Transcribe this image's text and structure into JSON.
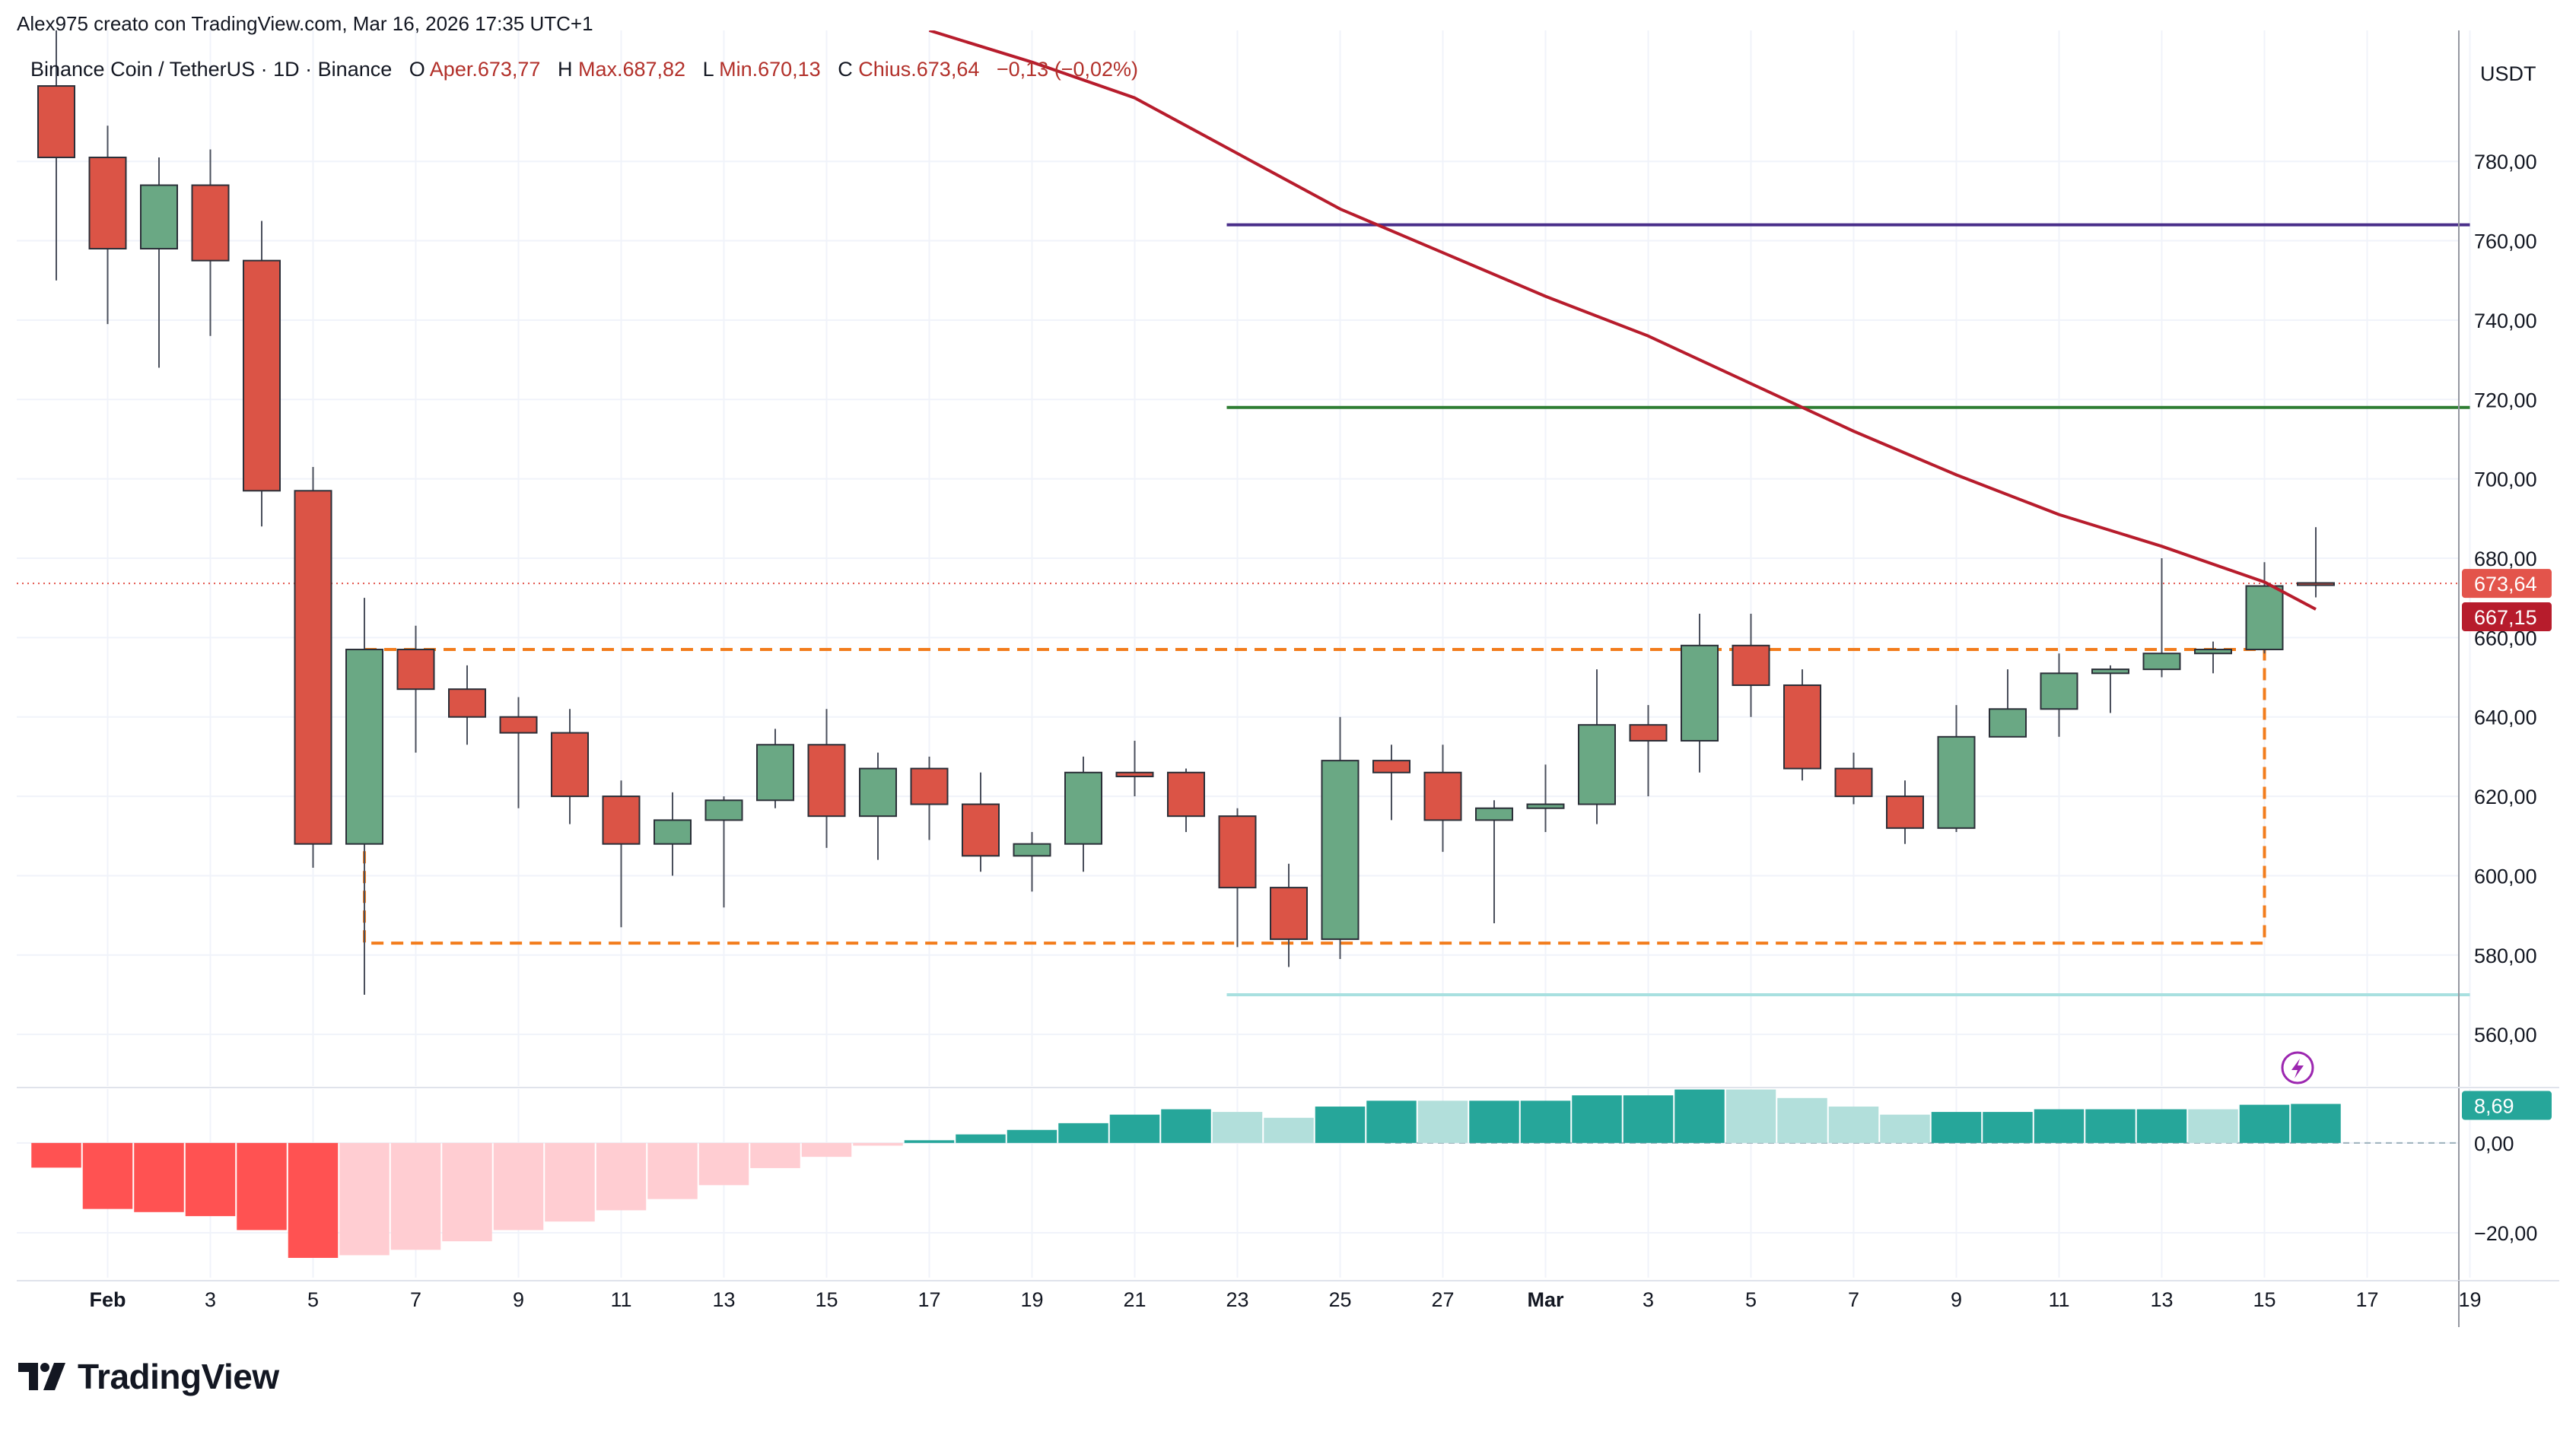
{
  "header": {
    "credit": "Alex975 creato con TradingView.com, Mar 16, 2026 17:35 UTC+1"
  },
  "legend": {
    "symbol": "Binance Coin / TetherUS · 1D · Binance",
    "open_label": "O",
    "open_value": "Aper.673,77",
    "high_label": "H",
    "high_value": "Max.687,82",
    "low_label": "L",
    "low_value": "Min.670,13",
    "close_label": "C",
    "close_value": "Chius.673,64",
    "change": "−0,13 (−0,02%)"
  },
  "brand": {
    "name": "TradingView"
  },
  "colors": {
    "up": "#6aa884",
    "down": "#db5446",
    "ma": "#b71c2c",
    "resistance_purple": "#4a2f8a",
    "resistance_green": "#2e7d32",
    "support_cyan": "#a8e0e0",
    "range_box": "#f27c1c",
    "hist_pos_strong": "#26a69a",
    "hist_pos_weak": "#b2dfdb",
    "hist_neg_strong": "#ff5252",
    "hist_neg_weak": "#ffcdd2"
  },
  "chart_data": [
    {
      "type": "candlestick",
      "title": "Binance Coin / TetherUS · 1D · Binance",
      "currency": "USDT",
      "y_axis": {
        "unit": "USDT",
        "ylim": [
          547,
          813
        ],
        "ticks": [
          "560,00",
          "580,00",
          "600,00",
          "620,00",
          "640,00",
          "660,00",
          "680,00",
          "700,00",
          "720,00",
          "740,00",
          "760,00",
          "780,00"
        ],
        "tick_values": [
          560,
          580,
          600,
          620,
          640,
          660,
          680,
          700,
          720,
          740,
          760,
          780
        ]
      },
      "x_axis": {
        "ticks": [
          {
            "date": "2026-02-01",
            "label": "Feb"
          },
          {
            "date": "2026-02-03",
            "label": "3"
          },
          {
            "date": "2026-02-05",
            "label": "5"
          },
          {
            "date": "2026-02-07",
            "label": "7"
          },
          {
            "date": "2026-02-09",
            "label": "9"
          },
          {
            "date": "2026-02-11",
            "label": "11"
          },
          {
            "date": "2026-02-13",
            "label": "13"
          },
          {
            "date": "2026-02-15",
            "label": "15"
          },
          {
            "date": "2026-02-17",
            "label": "17"
          },
          {
            "date": "2026-02-19",
            "label": "19"
          },
          {
            "date": "2026-02-21",
            "label": "21"
          },
          {
            "date": "2026-02-23",
            "label": "23"
          },
          {
            "date": "2026-02-25",
            "label": "25"
          },
          {
            "date": "2026-02-27",
            "label": "27"
          },
          {
            "date": "2026-03-01",
            "label": "Mar"
          },
          {
            "date": "2026-03-03",
            "label": "3"
          },
          {
            "date": "2026-03-05",
            "label": "5"
          },
          {
            "date": "2026-03-07",
            "label": "7"
          },
          {
            "date": "2026-03-09",
            "label": "9"
          },
          {
            "date": "2026-03-11",
            "label": "11"
          },
          {
            "date": "2026-03-13",
            "label": "13"
          },
          {
            "date": "2026-03-15",
            "label": "15"
          },
          {
            "date": "2026-03-17",
            "label": "17"
          },
          {
            "date": "2026-03-19",
            "label": "19"
          }
        ]
      },
      "candles": [
        {
          "date": "2026-01-31",
          "open": 799,
          "high": 813,
          "low": 750,
          "close": 781
        },
        {
          "date": "2026-02-01",
          "open": 781,
          "high": 789,
          "low": 739,
          "close": 758
        },
        {
          "date": "2026-02-02",
          "open": 758,
          "high": 781,
          "low": 728,
          "close": 774
        },
        {
          "date": "2026-02-03",
          "open": 774,
          "high": 783,
          "low": 736,
          "close": 755
        },
        {
          "date": "2026-02-04",
          "open": 755,
          "high": 765,
          "low": 688,
          "close": 697
        },
        {
          "date": "2026-02-05",
          "open": 697,
          "high": 703,
          "low": 602,
          "close": 608
        },
        {
          "date": "2026-02-06",
          "open": 608,
          "high": 670,
          "low": 570,
          "close": 657
        },
        {
          "date": "2026-02-07",
          "open": 657,
          "high": 663,
          "low": 631,
          "close": 647
        },
        {
          "date": "2026-02-08",
          "open": 647,
          "high": 653,
          "low": 633,
          "close": 640
        },
        {
          "date": "2026-02-09",
          "open": 640,
          "high": 645,
          "low": 617,
          "close": 636
        },
        {
          "date": "2026-02-10",
          "open": 636,
          "high": 642,
          "low": 613,
          "close": 620
        },
        {
          "date": "2026-02-11",
          "open": 620,
          "high": 624,
          "low": 587,
          "close": 608
        },
        {
          "date": "2026-02-12",
          "open": 608,
          "high": 621,
          "low": 600,
          "close": 614
        },
        {
          "date": "2026-02-13",
          "open": 614,
          "high": 620,
          "low": 592,
          "close": 619
        },
        {
          "date": "2026-02-14",
          "open": 619,
          "high": 637,
          "low": 617,
          "close": 633
        },
        {
          "date": "2026-02-15",
          "open": 633,
          "high": 642,
          "low": 607,
          "close": 615
        },
        {
          "date": "2026-02-16",
          "open": 615,
          "high": 631,
          "low": 604,
          "close": 627
        },
        {
          "date": "2026-02-17",
          "open": 627,
          "high": 630,
          "low": 609,
          "close": 618
        },
        {
          "date": "2026-02-18",
          "open": 618,
          "high": 626,
          "low": 601,
          "close": 605
        },
        {
          "date": "2026-02-19",
          "open": 605,
          "high": 611,
          "low": 596,
          "close": 608
        },
        {
          "date": "2026-02-20",
          "open": 608,
          "high": 630,
          "low": 601,
          "close": 626
        },
        {
          "date": "2026-02-21",
          "open": 626,
          "high": 634,
          "low": 620,
          "close": 625
        },
        {
          "date": "2026-02-22",
          "open": 626,
          "high": 627,
          "low": 611,
          "close": 615
        },
        {
          "date": "2026-02-23",
          "open": 615,
          "high": 617,
          "low": 582,
          "close": 597
        },
        {
          "date": "2026-02-24",
          "open": 597,
          "high": 603,
          "low": 577,
          "close": 584
        },
        {
          "date": "2026-02-25",
          "open": 584,
          "high": 640,
          "low": 579,
          "close": 629
        },
        {
          "date": "2026-02-26",
          "open": 629,
          "high": 633,
          "low": 614,
          "close": 626
        },
        {
          "date": "2026-02-27",
          "open": 626,
          "high": 633,
          "low": 606,
          "close": 614
        },
        {
          "date": "2026-02-28",
          "open": 614,
          "high": 619,
          "low": 588,
          "close": 617
        },
        {
          "date": "2026-03-01",
          "open": 617,
          "high": 628,
          "low": 611,
          "close": 618
        },
        {
          "date": "2026-03-02",
          "open": 618,
          "high": 652,
          "low": 613,
          "close": 638
        },
        {
          "date": "2026-03-03",
          "open": 638,
          "high": 643,
          "low": 620,
          "close": 634
        },
        {
          "date": "2026-03-04",
          "open": 634,
          "high": 666,
          "low": 626,
          "close": 658
        },
        {
          "date": "2026-03-05",
          "open": 658,
          "high": 666,
          "low": 640,
          "close": 648
        },
        {
          "date": "2026-03-06",
          "open": 648,
          "high": 652,
          "low": 624,
          "close": 627
        },
        {
          "date": "2026-03-07",
          "open": 627,
          "high": 631,
          "low": 618,
          "close": 620
        },
        {
          "date": "2026-03-08",
          "open": 620,
          "high": 624,
          "low": 608,
          "close": 612
        },
        {
          "date": "2026-03-09",
          "open": 612,
          "high": 643,
          "low": 611,
          "close": 635
        },
        {
          "date": "2026-03-10",
          "open": 635,
          "high": 652,
          "low": 635,
          "close": 642
        },
        {
          "date": "2026-03-11",
          "open": 642,
          "high": 656,
          "low": 635,
          "close": 651
        },
        {
          "date": "2026-03-12",
          "open": 651,
          "high": 653,
          "low": 641,
          "close": 652
        },
        {
          "date": "2026-03-13",
          "open": 652,
          "high": 680,
          "low": 650,
          "close": 656
        },
        {
          "date": "2026-03-14",
          "open": 656,
          "high": 659,
          "low": 651,
          "close": 657
        },
        {
          "date": "2026-03-15",
          "open": 657,
          "high": 679,
          "low": 656,
          "close": 673
        },
        {
          "date": "2026-03-16",
          "open": 673.77,
          "high": 687.82,
          "low": 670.13,
          "close": 673.64
        }
      ],
      "moving_average": [
        {
          "date": "2026-02-17",
          "value": 813
        },
        {
          "date": "2026-02-19",
          "value": 805
        },
        {
          "date": "2026-02-21",
          "value": 796
        },
        {
          "date": "2026-02-23",
          "value": 782
        },
        {
          "date": "2026-02-25",
          "value": 768
        },
        {
          "date": "2026-02-27",
          "value": 757
        },
        {
          "date": "2026-03-01",
          "value": 746
        },
        {
          "date": "2026-03-03",
          "value": 736
        },
        {
          "date": "2026-03-05",
          "value": 724
        },
        {
          "date": "2026-03-07",
          "value": 712
        },
        {
          "date": "2026-03-09",
          "value": 701
        },
        {
          "date": "2026-03-11",
          "value": 691
        },
        {
          "date": "2026-03-13",
          "value": 683
        },
        {
          "date": "2026-03-15",
          "value": 674
        },
        {
          "date": "2026-03-16",
          "value": 667.15
        }
      ],
      "horizontal_levels": [
        {
          "value": 764,
          "from": "2026-02-23",
          "to": "2026-03-19",
          "style": "solid",
          "color_key": "resistance_purple"
        },
        {
          "value": 718,
          "from": "2026-02-23",
          "to": "2026-03-19",
          "style": "solid",
          "color_key": "resistance_green"
        },
        {
          "value": 570,
          "from": "2026-02-23",
          "to": "2026-03-19",
          "style": "solid",
          "color_key": "support_cyan"
        }
      ],
      "range_box": {
        "from": "2026-02-06",
        "to": "2026-03-15",
        "top": 657,
        "bottom": 583
      },
      "last_price": {
        "value": 673.64,
        "label": "673,64"
      },
      "ma_label": {
        "value": 667.15,
        "label": "667,15"
      }
    },
    {
      "type": "histogram",
      "y_axis": {
        "ylim": [
          -30,
          12
        ],
        "ticks": [
          "0,00",
          "−20,00"
        ],
        "tick_values": [
          0,
          -20
        ]
      },
      "last_value": {
        "value": 8.69,
        "label": "8,69"
      },
      "bars": [
        {
          "date": "2026-01-31",
          "value": -5.5,
          "shade": "strong"
        },
        {
          "date": "2026-02-01",
          "value": -14.7,
          "shade": "strong"
        },
        {
          "date": "2026-02-02",
          "value": -15.4,
          "shade": "strong"
        },
        {
          "date": "2026-02-03",
          "value": -16.3,
          "shade": "strong"
        },
        {
          "date": "2026-02-04",
          "value": -19.4,
          "shade": "strong"
        },
        {
          "date": "2026-02-05",
          "value": -25.6,
          "shade": "strong"
        },
        {
          "date": "2026-02-06",
          "value": -25.0,
          "shade": "weak"
        },
        {
          "date": "2026-02-07",
          "value": -23.8,
          "shade": "weak"
        },
        {
          "date": "2026-02-08",
          "value": -21.9,
          "shade": "weak"
        },
        {
          "date": "2026-02-09",
          "value": -19.4,
          "shade": "weak"
        },
        {
          "date": "2026-02-10",
          "value": -17.5,
          "shade": "weak"
        },
        {
          "date": "2026-02-11",
          "value": -15.0,
          "shade": "weak"
        },
        {
          "date": "2026-02-12",
          "value": -12.5,
          "shade": "weak"
        },
        {
          "date": "2026-02-13",
          "value": -9.4,
          "shade": "weak"
        },
        {
          "date": "2026-02-14",
          "value": -5.6,
          "shade": "weak"
        },
        {
          "date": "2026-02-15",
          "value": -3.1,
          "shade": "weak"
        },
        {
          "date": "2026-02-16",
          "value": -0.6,
          "shade": "weak"
        },
        {
          "date": "2026-02-17",
          "value": 0.6,
          "shade": "strong"
        },
        {
          "date": "2026-02-18",
          "value": 1.9,
          "shade": "strong"
        },
        {
          "date": "2026-02-19",
          "value": 2.9,
          "shade": "strong"
        },
        {
          "date": "2026-02-20",
          "value": 4.4,
          "shade": "strong"
        },
        {
          "date": "2026-02-21",
          "value": 6.3,
          "shade": "strong"
        },
        {
          "date": "2026-02-22",
          "value": 7.5,
          "shade": "strong"
        },
        {
          "date": "2026-02-23",
          "value": 6.9,
          "shade": "weak"
        },
        {
          "date": "2026-02-24",
          "value": 5.6,
          "shade": "weak"
        },
        {
          "date": "2026-02-25",
          "value": 8.1,
          "shade": "strong"
        },
        {
          "date": "2026-02-26",
          "value": 9.4,
          "shade": "strong"
        },
        {
          "date": "2026-02-27",
          "value": 9.4,
          "shade": "weak"
        },
        {
          "date": "2026-02-28",
          "value": 9.4,
          "shade": "strong"
        },
        {
          "date": "2026-03-01",
          "value": 9.4,
          "shade": "strong"
        },
        {
          "date": "2026-03-02",
          "value": 10.6,
          "shade": "strong"
        },
        {
          "date": "2026-03-03",
          "value": 10.6,
          "shade": "strong"
        },
        {
          "date": "2026-03-04",
          "value": 11.9,
          "shade": "strong"
        },
        {
          "date": "2026-03-05",
          "value": 11.9,
          "shade": "weak"
        },
        {
          "date": "2026-03-06",
          "value": 10.0,
          "shade": "weak"
        },
        {
          "date": "2026-03-07",
          "value": 8.1,
          "shade": "weak"
        },
        {
          "date": "2026-03-08",
          "value": 6.3,
          "shade": "weak"
        },
        {
          "date": "2026-03-09",
          "value": 6.9,
          "shade": "strong"
        },
        {
          "date": "2026-03-10",
          "value": 6.9,
          "shade": "strong"
        },
        {
          "date": "2026-03-11",
          "value": 7.5,
          "shade": "strong"
        },
        {
          "date": "2026-03-12",
          "value": 7.5,
          "shade": "strong"
        },
        {
          "date": "2026-03-13",
          "value": 7.5,
          "shade": "strong"
        },
        {
          "date": "2026-03-14",
          "value": 7.5,
          "shade": "weak"
        },
        {
          "date": "2026-03-15",
          "value": 8.5,
          "shade": "strong"
        },
        {
          "date": "2026-03-16",
          "value": 8.69,
          "shade": "strong"
        }
      ]
    }
  ]
}
